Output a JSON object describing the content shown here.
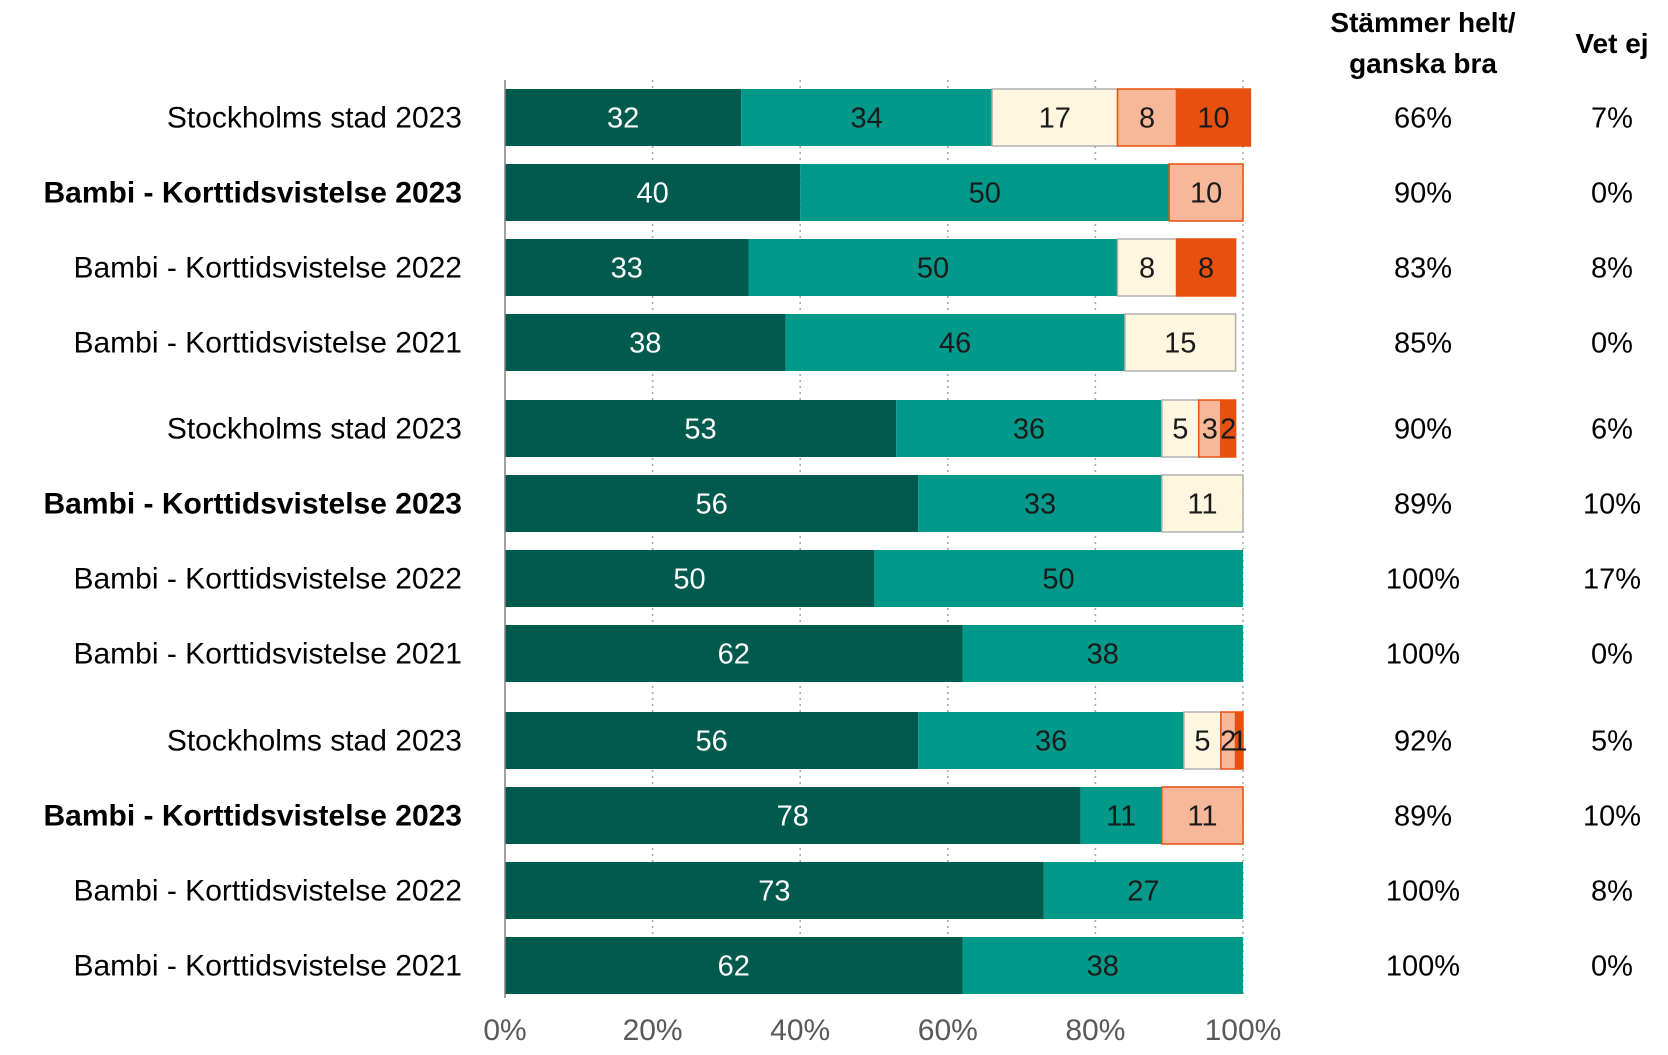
{
  "colors": {
    "segments": [
      "#005a4e",
      "#00998a",
      "#fff6e0",
      "#f7b89a",
      "#e8500f"
    ],
    "segment_text": [
      "#ffffff",
      "#1a1a1a",
      "#1a1a1a",
      "#1a1a1a",
      "#1a1a1a"
    ],
    "segment_stroke": [
      "none",
      "none",
      "#b0b0b0",
      "#e8500f",
      "#e8500f"
    ],
    "gridline": "#a6a6a6",
    "axis": "#808080"
  },
  "columns": {
    "col1_header_line1": "Stämmer helt/",
    "col1_header_line2": "ganska bra",
    "col2_header": "Vet ej"
  },
  "chart_data": {
    "type": "bar",
    "orientation": "horizontal",
    "stacked": true,
    "xlim": [
      0,
      100
    ],
    "x_ticks": [
      "0%",
      "20%",
      "40%",
      "60%",
      "80%",
      "100%"
    ],
    "grid": true,
    "groups": [
      {
        "rows": [
          {
            "label": "Stockholms stad 2023",
            "bold": false,
            "values": [
              32,
              34,
              17,
              8,
              10
            ],
            "col1": "66%",
            "col2": "7%"
          },
          {
            "label": "Bambi - Korttidsvistelse 2023",
            "bold": true,
            "values": [
              40,
              50,
              0,
              10,
              0
            ],
            "col1": "90%",
            "col2": "0%"
          },
          {
            "label": "Bambi - Korttidsvistelse 2022",
            "bold": false,
            "values": [
              33,
              50,
              8,
              0,
              8
            ],
            "col1": "83%",
            "col2": "8%"
          },
          {
            "label": "Bambi - Korttidsvistelse 2021",
            "bold": false,
            "values": [
              38,
              46,
              15,
              0,
              0
            ],
            "col1": "85%",
            "col2": "0%"
          }
        ]
      },
      {
        "rows": [
          {
            "label": "Stockholms stad 2023",
            "bold": false,
            "values": [
              53,
              36,
              5,
              3,
              2
            ],
            "col1": "90%",
            "col2": "6%"
          },
          {
            "label": "Bambi - Korttidsvistelse 2023",
            "bold": true,
            "values": [
              56,
              33,
              11,
              0,
              0
            ],
            "col1": "89%",
            "col2": "10%"
          },
          {
            "label": "Bambi - Korttidsvistelse 2022",
            "bold": false,
            "values": [
              50,
              50,
              0,
              0,
              0
            ],
            "col1": "100%",
            "col2": "17%"
          },
          {
            "label": "Bambi - Korttidsvistelse 2021",
            "bold": false,
            "values": [
              62,
              38,
              0,
              0,
              0
            ],
            "col1": "100%",
            "col2": "0%"
          }
        ]
      },
      {
        "rows": [
          {
            "label": "Stockholms stad 2023",
            "bold": false,
            "values": [
              56,
              36,
              5,
              2,
              1
            ],
            "col1": "92%",
            "col2": "5%"
          },
          {
            "label": "Bambi - Korttidsvistelse 2023",
            "bold": true,
            "values": [
              78,
              11,
              0,
              11,
              0
            ],
            "col1": "89%",
            "col2": "10%"
          },
          {
            "label": "Bambi - Korttidsvistelse 2022",
            "bold": false,
            "values": [
              73,
              27,
              0,
              0,
              0
            ],
            "col1": "100%",
            "col2": "8%"
          },
          {
            "label": "Bambi - Korttidsvistelse 2021",
            "bold": false,
            "values": [
              62,
              38,
              0,
              0,
              0
            ],
            "col1": "100%",
            "col2": "0%"
          }
        ]
      }
    ]
  }
}
